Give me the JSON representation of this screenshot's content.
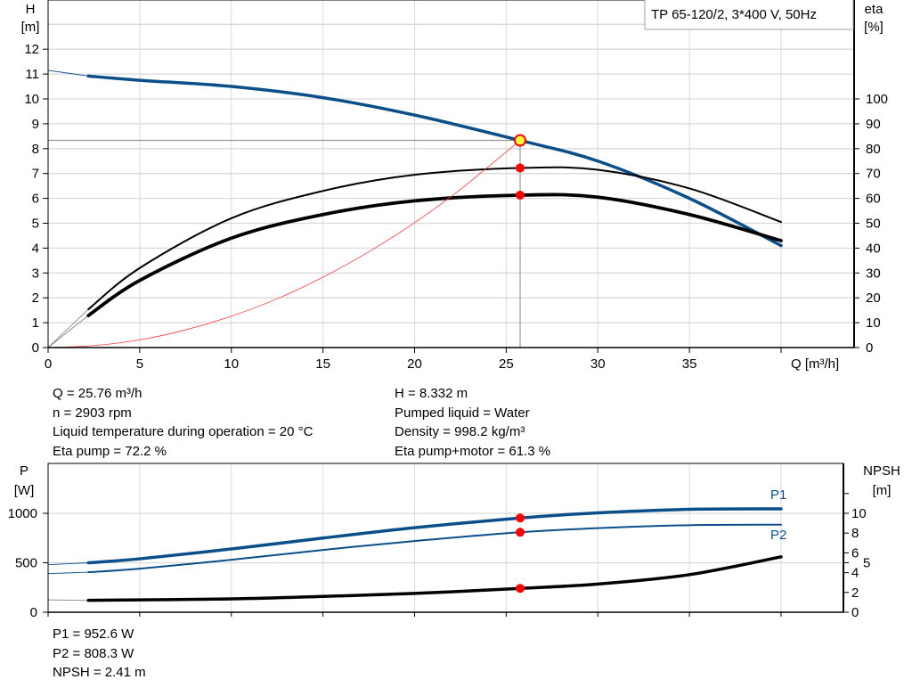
{
  "title": "TP 65-120/2, 3*400 V, 50Hz",
  "colors": {
    "head": "#0b4f8a",
    "eta": "#000000",
    "system": "#ff3b3b",
    "power": "#0b4f8a",
    "npsh": "#000000",
    "point": "#ff0000",
    "duty_point": "#ffff33",
    "grid": "#d9d9d9"
  },
  "chart_data": [
    {
      "type": "line",
      "xlabel": "Q [m³/h]",
      "ylabel_left": "H\n[m]",
      "ylabel_left_lines": [
        "H",
        "[m]"
      ],
      "ylabel_right_lines": [
        "eta",
        "[%]"
      ],
      "xlim": [
        0,
        43.7
      ],
      "ylim_left": [
        0,
        14
      ],
      "ylim_right": [
        0,
        140
      ],
      "x_ticks": [
        "0",
        "5",
        "10",
        "15",
        "20",
        "25",
        "30",
        "35",
        ""
      ],
      "x_tick_values": [
        0,
        5,
        10,
        15,
        20,
        25,
        30,
        35,
        40
      ],
      "y_left_ticks": [
        "0",
        "1",
        "2",
        "3",
        "4",
        "5",
        "6",
        "7",
        "8",
        "9",
        "10",
        "11",
        "12"
      ],
      "y_right_ticks": [
        "0",
        "10",
        "20",
        "30",
        "40",
        "50",
        "60",
        "70",
        "80",
        "90",
        "100"
      ],
      "grid": true,
      "series": [
        {
          "key": "head",
          "axis": "left",
          "x": [
            2.2,
            5,
            10,
            15,
            20,
            25.76,
            30,
            35,
            40
          ],
          "y": [
            10.92,
            10.75,
            10.5,
            10.05,
            9.35,
            8.33,
            7.5,
            6.0,
            4.1
          ],
          "extrapolated": {
            "x": [
              0,
              2.2
            ],
            "y": [
              11.15,
              10.92
            ]
          }
        },
        {
          "key": "eta_pump",
          "axis": "right",
          "x": [
            2.2,
            5,
            10,
            15,
            20,
            25.76,
            30,
            35,
            40
          ],
          "y": [
            15.4,
            32,
            52,
            63,
            69.5,
            72.2,
            71.5,
            64,
            50.5
          ],
          "extrapolated": {
            "x": [
              0,
              2.2
            ],
            "y": [
              0,
              15.4
            ]
          }
        },
        {
          "key": "eta_pump_motor",
          "axis": "right",
          "x": [
            2.2,
            5,
            10,
            15,
            20,
            25.76,
            30,
            35,
            40
          ],
          "y": [
            12.9,
            27,
            44,
            53.5,
            59,
            61.3,
            60.5,
            53.5,
            43
          ],
          "extrapolated": {
            "x": [
              0,
              2.2
            ],
            "y": [
              0,
              12.9
            ]
          }
        },
        {
          "key": "system",
          "axis": "left",
          "x": [
            0,
            2.5,
            5,
            7.5,
            10,
            12.5,
            15,
            17.5,
            20,
            22.5,
            25.76
          ],
          "y": [
            0,
            0.08,
            0.31,
            0.71,
            1.26,
            1.96,
            2.83,
            3.85,
            5.02,
            6.36,
            8.33
          ]
        }
      ],
      "duty_point": {
        "Q": 25.76,
        "H": 8.332,
        "eta_pump": 72.2,
        "eta_pump_motor": 61.3
      }
    },
    {
      "type": "line",
      "ylabel_left_lines": [
        "P",
        "[W]"
      ],
      "ylabel_right_lines": [
        "NPSH",
        "[m]"
      ],
      "xlim": [
        0,
        43.7
      ],
      "ylim_left": [
        0,
        1500
      ],
      "ylim_right": [
        0,
        15
      ],
      "y_left_ticks": [
        "0",
        "500",
        "1000"
      ],
      "y_left_tick_values": [
        0,
        500,
        1000
      ],
      "y_right_ticks": [
        "0",
        "2",
        "4",
        "5",
        "6",
        "8",
        "10",
        ""
      ],
      "y_right_tick_values": [
        0,
        2,
        4,
        5,
        6,
        8,
        10,
        12
      ],
      "grid": true,
      "series": [
        {
          "key": "P1",
          "name": "P1",
          "axis": "left",
          "x": [
            2.2,
            5,
            10,
            15,
            20,
            25.76,
            30,
            35,
            40
          ],
          "y": [
            500,
            540,
            640,
            750,
            855,
            952.6,
            1005,
            1040,
            1045
          ],
          "extrapolated": {
            "x": [
              0,
              2.2
            ],
            "y": [
              480,
              500
            ]
          }
        },
        {
          "key": "P2",
          "name": "P2",
          "axis": "left",
          "x": [
            2.2,
            5,
            10,
            15,
            20,
            25.76,
            30,
            35,
            40
          ],
          "y": [
            405,
            440,
            530,
            630,
            720,
            808.3,
            850,
            880,
            885
          ],
          "extrapolated": {
            "x": [
              0,
              2.2
            ],
            "y": [
              390,
              405
            ]
          }
        },
        {
          "key": "NPSH",
          "axis": "right",
          "x": [
            2.2,
            10,
            15,
            20,
            25.76,
            30,
            35,
            40
          ],
          "y": [
            1.2,
            1.35,
            1.6,
            1.9,
            2.41,
            2.85,
            3.8,
            5.6
          ],
          "extrapolated": {
            "x": [
              0,
              2.2
            ],
            "y": [
              1.25,
              1.2
            ]
          }
        }
      ],
      "duty_point": {
        "Q": 25.76,
        "P1": 952.6,
        "P2": 808.3,
        "NPSH": 2.41
      }
    }
  ],
  "info_top_left": [
    "Q = 25.76 m³/h",
    "n = 2903 rpm",
    "Liquid temperature during operation = 20 °C",
    "Eta pump = 72.2 %"
  ],
  "info_top_right": [
    "H = 8.332 m",
    "Pumped liquid = Water",
    "Density = 998.2 kg/m³",
    "Eta pump+motor = 61.3 %"
  ],
  "info_bottom": [
    "P1 = 952.6 W",
    "P2 = 808.3 W",
    "NPSH = 2.41 m"
  ]
}
